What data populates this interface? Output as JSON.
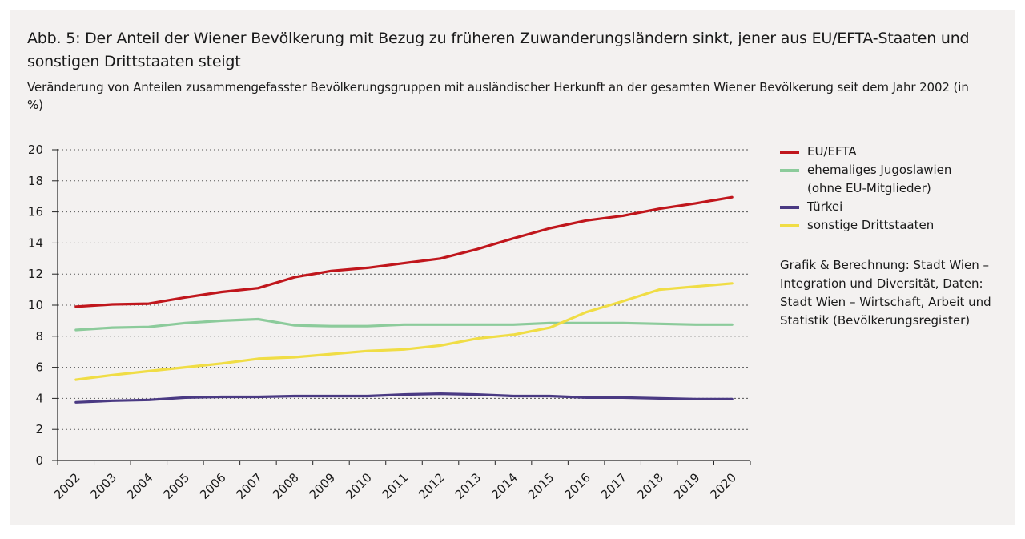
{
  "title": "Abb. 5: Der Anteil der Wiener Bevölkerung mit Bezug zu früheren Zuwanderungsländern sinkt, jener aus EU/EFTA-Staaten und sonstigen Drittstaaten steigt",
  "subtitle": "Veränderung von Anteilen zusammengefasster Bevölkerungsgruppen mit ausländischer Herkunft an der gesamten Wiener Bevölkerung seit dem Jahr 2002 (in %)",
  "source": "Grafik & Berechnung: Stadt Wien – Integration und Diversität, Daten: Stadt Wien – Wirtschaft, Arbeit und Statistik (Bevölkerungsregister)",
  "chart_data": {
    "type": "line",
    "title": "Abb. 5: Der Anteil der Wiener Bevölkerung mit Bezug zu früheren Zuwanderungsländern sinkt, jener aus EU/EFTA-Staaten und sonstigen Drittstaaten steigt",
    "subtitle": "Veränderung von Anteilen zusammengefasster Bevölkerungsgruppen mit ausländischer Herkunft an der gesamten Wiener Bevölkerung seit dem Jahr 2002 (in %)",
    "xlabel": "",
    "ylabel": "",
    "x": [
      "2002",
      "2003",
      "2004",
      "2005",
      "2006",
      "2007",
      "2008",
      "2009",
      "2010",
      "2011",
      "2012",
      "2013",
      "2014",
      "2015",
      "2016",
      "2017",
      "2018",
      "2019",
      "2020"
    ],
    "ylim": [
      0,
      20
    ],
    "yticks": [
      0,
      2,
      4,
      6,
      8,
      10,
      12,
      14,
      16,
      18,
      20
    ],
    "grid": true,
    "legend_position": "right",
    "series": [
      {
        "name": "EU/EFTA",
        "color": "#c0161c",
        "values": [
          9.9,
          10.05,
          10.1,
          10.5,
          10.85,
          11.1,
          11.8,
          12.2,
          12.4,
          12.7,
          13.0,
          13.6,
          14.3,
          14.95,
          15.45,
          15.75,
          16.2,
          16.55,
          16.95
        ]
      },
      {
        "name": "ehemaliges Jugoslawien",
        "name_line2": "(ohne EU-Mitglieder)",
        "color": "#8ccb9b",
        "values": [
          8.4,
          8.55,
          8.6,
          8.85,
          9.0,
          9.1,
          8.7,
          8.65,
          8.65,
          8.75,
          8.75,
          8.75,
          8.75,
          8.85,
          8.85,
          8.85,
          8.8,
          8.75,
          8.75
        ]
      },
      {
        "name": "Türkei",
        "color": "#4a3a83",
        "values": [
          3.75,
          3.85,
          3.9,
          4.05,
          4.1,
          4.1,
          4.15,
          4.15,
          4.15,
          4.25,
          4.3,
          4.25,
          4.15,
          4.15,
          4.05,
          4.05,
          4.0,
          3.95,
          3.95
        ]
      },
      {
        "name": "sonstige Drittstaaten",
        "color": "#f0dd45",
        "values": [
          5.2,
          5.5,
          5.75,
          6.0,
          6.25,
          6.55,
          6.65,
          6.85,
          7.05,
          7.15,
          7.4,
          7.85,
          8.1,
          8.55,
          9.55,
          10.25,
          11.0,
          11.2,
          11.4
        ]
      }
    ]
  }
}
